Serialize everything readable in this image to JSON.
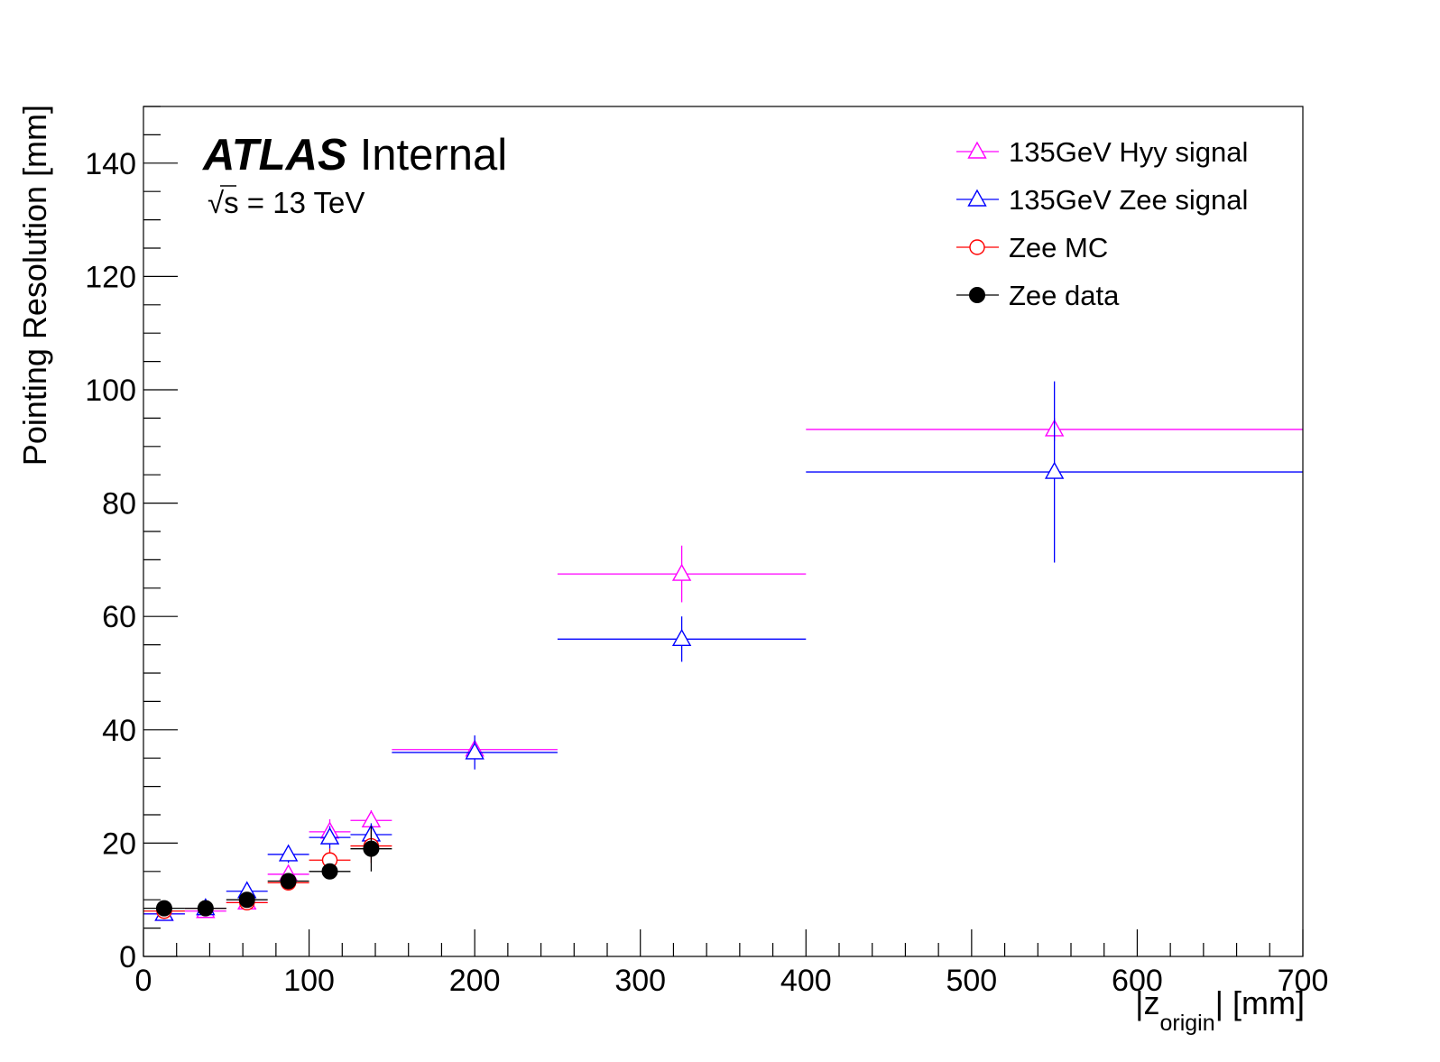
{
  "chart_data": {
    "type": "scatter",
    "title": "",
    "xlabel": {
      "main": "|z",
      "subscript": "origin",
      "tail": "| [mm]"
    },
    "ylabel": "Pointing Resolution [mm]",
    "xlim": [
      0,
      700
    ],
    "ylim": [
      0,
      150
    ],
    "x_ticks": [
      0,
      100,
      200,
      300,
      400,
      500,
      600,
      700
    ],
    "y_ticks": [
      0,
      20,
      40,
      60,
      80,
      100,
      120,
      140
    ],
    "grid": false,
    "legend_position": "top-right",
    "annotation": {
      "experiment": "ATLAS",
      "status": "Internal",
      "energy_sqrt": "s",
      "energy_rest": " = 13 TeV"
    },
    "series": [
      {
        "name": "135GeV Hyy signal",
        "color": "#ff00ff",
        "marker": "open-triangle",
        "points": [
          {
            "x": 12.5,
            "y": 7.5,
            "xlo": 0,
            "xhi": 25,
            "yerr": 0.6
          },
          {
            "x": 37.5,
            "y": 8.0,
            "xlo": 25,
            "xhi": 50,
            "yerr": 0.6
          },
          {
            "x": 62.5,
            "y": 9.5,
            "xlo": 50,
            "xhi": 75,
            "yerr": 0.8
          },
          {
            "x": 87.5,
            "y": 14.5,
            "xlo": 75,
            "xhi": 100,
            "yerr": 1.2
          },
          {
            "x": 112.5,
            "y": 22.0,
            "xlo": 100,
            "xhi": 125,
            "yerr": 2.2
          },
          {
            "x": 137.5,
            "y": 24.0,
            "xlo": 125,
            "xhi": 150,
            "yerr": 1.8
          },
          {
            "x": 200,
            "y": 36.5,
            "xlo": 150,
            "xhi": 250,
            "yerr": 1.5
          },
          {
            "x": 325,
            "y": 67.5,
            "xlo": 250,
            "xhi": 400,
            "yerr": 5.0
          },
          {
            "x": 550,
            "y": 93.0,
            "xlo": 400,
            "xhi": 700,
            "yerr": 2.0
          }
        ]
      },
      {
        "name": "135GeV Zee signal",
        "color": "#0000ff",
        "marker": "open-triangle",
        "points": [
          {
            "x": 12.5,
            "y": 7.5,
            "xlo": 0,
            "xhi": 25,
            "yerr": 0.6
          },
          {
            "x": 37.5,
            "y": 8.5,
            "xlo": 25,
            "xhi": 50,
            "yerr": 0.6
          },
          {
            "x": 62.5,
            "y": 11.5,
            "xlo": 50,
            "xhi": 75,
            "yerr": 0.8
          },
          {
            "x": 87.5,
            "y": 18.0,
            "xlo": 75,
            "xhi": 100,
            "yerr": 1.5
          },
          {
            "x": 112.5,
            "y": 21.0,
            "xlo": 100,
            "xhi": 125,
            "yerr": 2.0
          },
          {
            "x": 137.5,
            "y": 21.5,
            "xlo": 125,
            "xhi": 150,
            "yerr": 2.0
          },
          {
            "x": 200,
            "y": 36.0,
            "xlo": 150,
            "xhi": 250,
            "yerr": 3.0
          },
          {
            "x": 325,
            "y": 56.0,
            "xlo": 250,
            "xhi": 400,
            "yerr": 4.0
          },
          {
            "x": 550,
            "y": 85.5,
            "xlo": 400,
            "xhi": 700,
            "yerr": 16.0
          }
        ]
      },
      {
        "name": "Zee MC",
        "color": "#ff0000",
        "marker": "open-circle",
        "points": [
          {
            "x": 12.5,
            "y": 8.0,
            "xlo": 0,
            "xhi": 25,
            "yerr": 0.5
          },
          {
            "x": 37.5,
            "y": 8.5,
            "xlo": 25,
            "xhi": 50,
            "yerr": 0.5
          },
          {
            "x": 62.5,
            "y": 9.5,
            "xlo": 50,
            "xhi": 75,
            "yerr": 0.6
          },
          {
            "x": 87.5,
            "y": 13.0,
            "xlo": 75,
            "xhi": 100,
            "yerr": 0.8
          },
          {
            "x": 112.5,
            "y": 17.0,
            "xlo": 100,
            "xhi": 125,
            "yerr": 2.0
          },
          {
            "x": 137.5,
            "y": 19.5,
            "xlo": 125,
            "xhi": 150,
            "yerr": 3.0
          }
        ]
      },
      {
        "name": "Zee data",
        "color": "#000000",
        "marker": "filled-circle",
        "points": [
          {
            "x": 12.5,
            "y": 8.5,
            "xlo": 0,
            "xhi": 25,
            "yerr": 0.5
          },
          {
            "x": 37.5,
            "y": 8.5,
            "xlo": 25,
            "xhi": 50,
            "yerr": 0.5
          },
          {
            "x": 62.5,
            "y": 10.0,
            "xlo": 50,
            "xhi": 75,
            "yerr": 0.6
          },
          {
            "x": 87.5,
            "y": 13.3,
            "xlo": 75,
            "xhi": 100,
            "yerr": 0.8
          },
          {
            "x": 112.5,
            "y": 15.0,
            "xlo": 100,
            "xhi": 125,
            "yerr": 1.0
          },
          {
            "x": 137.5,
            "y": 19.0,
            "xlo": 125,
            "xhi": 150,
            "yerr": 4.0
          }
        ]
      }
    ]
  }
}
